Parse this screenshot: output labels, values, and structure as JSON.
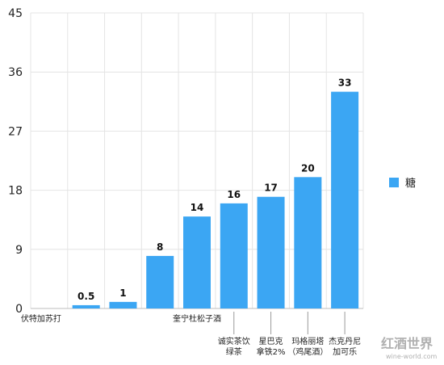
{
  "chart_data": {
    "type": "bar",
    "categories": [
      "伏特加苏打",
      "",
      "",
      "",
      "奎宁杜松子酒",
      "诚实茶饮绿茶",
      "星巴克拿铁2%",
      "玛格丽塔（鸡尾酒）",
      "杰克丹尼加可乐"
    ],
    "category_lines": [
      [
        "伏特加苏打"
      ],
      [],
      [],
      [],
      [
        "奎宁杜松子酒"
      ],
      [
        "诚实茶饮",
        "绿茶"
      ],
      [
        "星巴克",
        "拿铁2%"
      ],
      [
        "玛格丽塔",
        "（鸡尾酒）"
      ],
      [
        "杰克丹尼",
        "加可乐"
      ]
    ],
    "series": [
      {
        "name": "糖",
        "values": [
          0,
          0.5,
          1,
          8,
          14,
          16,
          17,
          20,
          33
        ]
      }
    ],
    "data_labels": [
      "",
      "0.5",
      "1",
      "8",
      "14",
      "16",
      "17",
      "20",
      "33"
    ],
    "yticks": [
      0,
      9,
      18,
      27,
      36,
      45
    ],
    "ytick_labels": [
      "0",
      "9",
      "18",
      "27",
      "36",
      "45"
    ],
    "ylim": [
      0,
      45
    ],
    "title": "",
    "xlabel": "",
    "ylabel": "",
    "grid": true,
    "legend_position": "right",
    "bar_color": "#3ba6f3"
  },
  "watermark": {
    "text": "红酒世界",
    "url": "wine-world.com"
  }
}
